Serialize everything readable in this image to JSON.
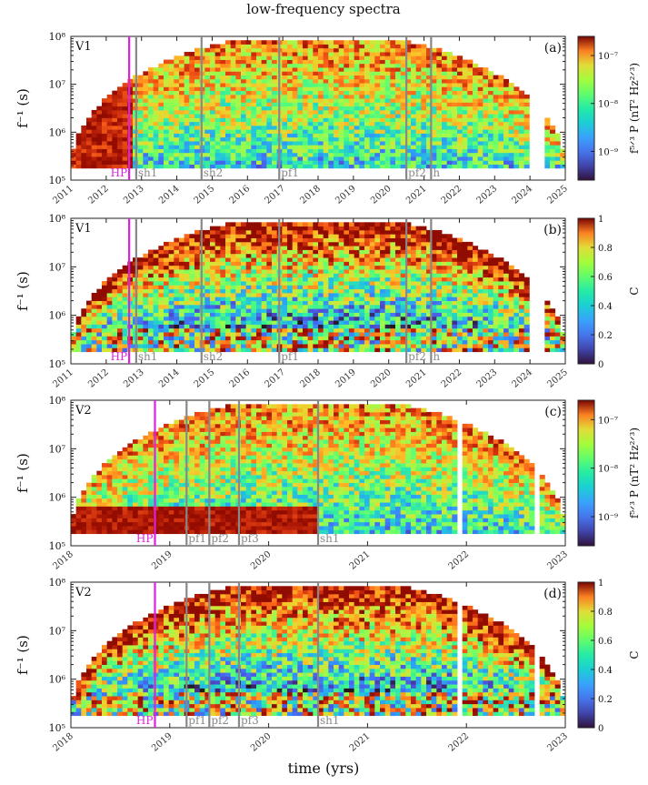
{
  "figure": {
    "title": "low-frequency spectra",
    "xlabel": "time (yrs)"
  },
  "chart_data": [
    {
      "id": "a",
      "type": "heatmap",
      "panel_label": "(a)",
      "spacecraft": "V1",
      "ylabel": "f⁻¹ (s)",
      "y_scale": "log",
      "ylim": [
        100000,
        100000000
      ],
      "y_ticks": [
        "10⁵",
        "10⁶",
        "10⁷",
        "10⁸"
      ],
      "xlim": [
        2011,
        2025
      ],
      "x_ticks": [
        "2011",
        "2012",
        "2013",
        "2014",
        "2015",
        "2016",
        "2017",
        "2018",
        "2019",
        "2020",
        "2021",
        "2022",
        "2023",
        "2024",
        "2025"
      ],
      "quantity": "power",
      "colorbar_label": "f⁵ᐟ³ P (nT² Hz²ᐟ³)",
      "colorbar_scale": "log",
      "colorbar_ticks": [
        "10⁻⁷",
        "10⁻⁸",
        "10⁻⁹"
      ],
      "colorbar_tick_values": [
        -7,
        -8,
        -9
      ],
      "colorbar_range": [
        -9.6,
        -6.6
      ],
      "data_gaps": [
        [
          2024.0,
          2024.4
        ]
      ],
      "data_end": 2025.0,
      "markers": [
        {
          "label": "HP",
          "year": 2012.65,
          "color": "#e020e0"
        },
        {
          "label": "sh1",
          "year": 2012.85,
          "color": "#888888"
        },
        {
          "label": "sh2",
          "year": 2014.7,
          "color": "#888888"
        },
        {
          "label": "pf1",
          "year": 2016.9,
          "color": "#888888"
        },
        {
          "label": "pf2",
          "year": 2020.5,
          "color": "#888888"
        },
        {
          "label": "h",
          "year": 2021.2,
          "color": "#888888"
        }
      ]
    },
    {
      "id": "b",
      "type": "heatmap",
      "panel_label": "(b)",
      "spacecraft": "V1",
      "ylabel": "f⁻¹ (s)",
      "y_scale": "log",
      "ylim": [
        100000,
        100000000
      ],
      "y_ticks": [
        "10⁵",
        "10⁶",
        "10⁷",
        "10⁸"
      ],
      "xlim": [
        2011,
        2025
      ],
      "x_ticks": [
        "2011",
        "2012",
        "2013",
        "2014",
        "2015",
        "2016",
        "2017",
        "2018",
        "2019",
        "2020",
        "2021",
        "2022",
        "2023",
        "2024",
        "2025"
      ],
      "quantity": "coherence",
      "colorbar_label": "C",
      "colorbar_scale": "linear",
      "colorbar_ticks": [
        "0",
        "0.2",
        "0.4",
        "0.6",
        "0.8",
        "1"
      ],
      "colorbar_tick_values": [
        0,
        0.2,
        0.4,
        0.6,
        0.8,
        1
      ],
      "colorbar_range": [
        0,
        1
      ],
      "data_gaps": [
        [
          2024.0,
          2024.4
        ]
      ],
      "data_end": 2025.0,
      "markers": [
        {
          "label": "HP",
          "year": 2012.65,
          "color": "#e020e0"
        },
        {
          "label": "sh1",
          "year": 2012.85,
          "color": "#888888"
        },
        {
          "label": "sh2",
          "year": 2014.7,
          "color": "#888888"
        },
        {
          "label": "pf1",
          "year": 2016.9,
          "color": "#888888"
        },
        {
          "label": "pf2",
          "year": 2020.5,
          "color": "#888888"
        },
        {
          "label": "h",
          "year": 2021.2,
          "color": "#888888"
        }
      ]
    },
    {
      "id": "c",
      "type": "heatmap",
      "panel_label": "(c)",
      "spacecraft": "V2",
      "ylabel": "f⁻¹ (s)",
      "y_scale": "log",
      "ylim": [
        100000,
        100000000
      ],
      "y_ticks": [
        "10⁵",
        "10⁶",
        "10⁷",
        "10⁸"
      ],
      "xlim": [
        2018,
        2023
      ],
      "x_ticks": [
        "2018",
        "2019",
        "2020",
        "2021",
        "2022",
        "2023"
      ],
      "quantity": "power",
      "colorbar_label": "f⁵ᐟ³ P (nT² Hz²ᐟ³)",
      "colorbar_scale": "log",
      "colorbar_ticks": [
        "10⁻⁷",
        "10⁻⁸",
        "10⁻⁹"
      ],
      "colorbar_tick_values": [
        -7,
        -8,
        -9
      ],
      "colorbar_range": [
        -9.6,
        -6.6
      ],
      "data_gaps": [
        [
          2021.93,
          2021.97
        ],
        [
          2022.7,
          2022.75
        ]
      ],
      "data_end": 2023.0,
      "markers": [
        {
          "label": "HP",
          "year": 2018.85,
          "color": "#e020e0"
        },
        {
          "label": "pf1",
          "year": 2019.17,
          "color": "#888888"
        },
        {
          "label": "pf2",
          "year": 2019.4,
          "color": "#888888"
        },
        {
          "label": "pf3",
          "year": 2019.7,
          "color": "#888888"
        },
        {
          "label": "sh1",
          "year": 2020.5,
          "color": "#888888"
        }
      ]
    },
    {
      "id": "d",
      "type": "heatmap",
      "panel_label": "(d)",
      "spacecraft": "V2",
      "ylabel": "f⁻¹ (s)",
      "y_scale": "log",
      "ylim": [
        100000,
        100000000
      ],
      "y_ticks": [
        "10⁵",
        "10⁶",
        "10⁷",
        "10⁸"
      ],
      "xlim": [
        2018,
        2023
      ],
      "x_ticks": [
        "2018",
        "2019",
        "2020",
        "2021",
        "2022",
        "2023"
      ],
      "quantity": "coherence",
      "colorbar_label": "C",
      "colorbar_scale": "linear",
      "colorbar_ticks": [
        "0",
        "0.2",
        "0.4",
        "0.6",
        "0.8",
        "1"
      ],
      "colorbar_tick_values": [
        0,
        0.2,
        0.4,
        0.6,
        0.8,
        1
      ],
      "colorbar_range": [
        0,
        1
      ],
      "data_gaps": [
        [
          2021.93,
          2021.97
        ],
        [
          2022.7,
          2022.75
        ]
      ],
      "data_end": 2023.0,
      "markers": [
        {
          "label": "HP",
          "year": 2018.85,
          "color": "#e020e0"
        },
        {
          "label": "pf1",
          "year": 2019.17,
          "color": "#888888"
        },
        {
          "label": "pf2",
          "year": 2019.4,
          "color": "#888888"
        },
        {
          "label": "pf3",
          "year": 2019.7,
          "color": "#888888"
        },
        {
          "label": "sh1",
          "year": 2020.5,
          "color": "#888888"
        }
      ]
    }
  ]
}
